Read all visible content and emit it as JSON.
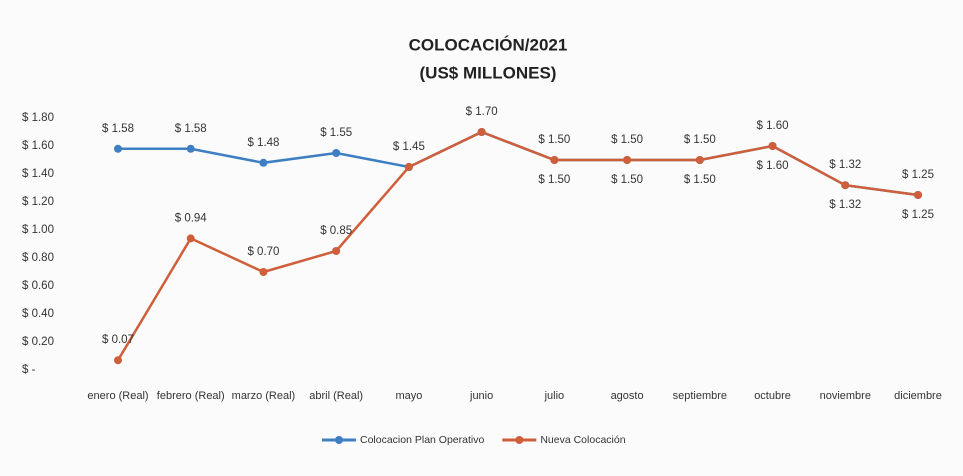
{
  "chart_data": {
    "type": "line",
    "title": "COLOCACIÓN/2021",
    "subtitle": "(US$ MILLONES)",
    "categories": [
      "enero (Real)",
      "febrero (Real)",
      "marzo (Real)",
      "abril (Real)",
      "mayo",
      "junio",
      "julio",
      "agosto",
      "septiembre",
      "octubre",
      "noviembre",
      "diciembre"
    ],
    "series": [
      {
        "name": "Colocacion Plan Operativo",
        "color": "#3d7fc2",
        "values": [
          1.58,
          1.58,
          1.48,
          1.55,
          1.45,
          1.7,
          1.5,
          1.5,
          1.5,
          1.6,
          1.32,
          1.25
        ],
        "value_labels": [
          "$ 1.58",
          "$ 1.58",
          "$ 1.48",
          "$ 1.55",
          "$ 1.45",
          "$ 1.70",
          "$ 1.50",
          "$ 1.50",
          "$ 1.50",
          "$ 1.60",
          "$ 1.32",
          "$ 1.25"
        ]
      },
      {
        "name": "Nueva Colocación",
        "color": "#cf5f3a",
        "values": [
          0.07,
          0.94,
          0.7,
          0.85,
          1.45,
          1.7,
          1.5,
          1.5,
          1.5,
          1.6,
          1.32,
          1.25
        ],
        "value_labels": [
          "$ 0.07",
          "$ 0.94",
          "$ 0.70",
          "$ 0.85",
          null,
          null,
          "$ 1.50",
          "$ 1.50",
          "$ 1.50",
          "$ 1.60",
          "$ 1.32",
          "$ 1.25"
        ]
      }
    ],
    "ylim": [
      0,
      1.8
    ],
    "yticks": [
      {
        "value": 0,
        "label": "$ -"
      },
      {
        "value": 0.2,
        "label": "$ 0.20"
      },
      {
        "value": 0.4,
        "label": "$ 0.40"
      },
      {
        "value": 0.6,
        "label": "$ 0.60"
      },
      {
        "value": 0.8,
        "label": "$ 0.80"
      },
      {
        "value": 1.0,
        "label": "$ 1.00"
      },
      {
        "value": 1.2,
        "label": "$ 1.20"
      },
      {
        "value": 1.4,
        "label": "$ 1.40"
      },
      {
        "value": 1.6,
        "label": "$ 1.60"
      },
      {
        "value": 1.8,
        "label": "$ 1.80"
      }
    ],
    "legend": "bottom"
  }
}
